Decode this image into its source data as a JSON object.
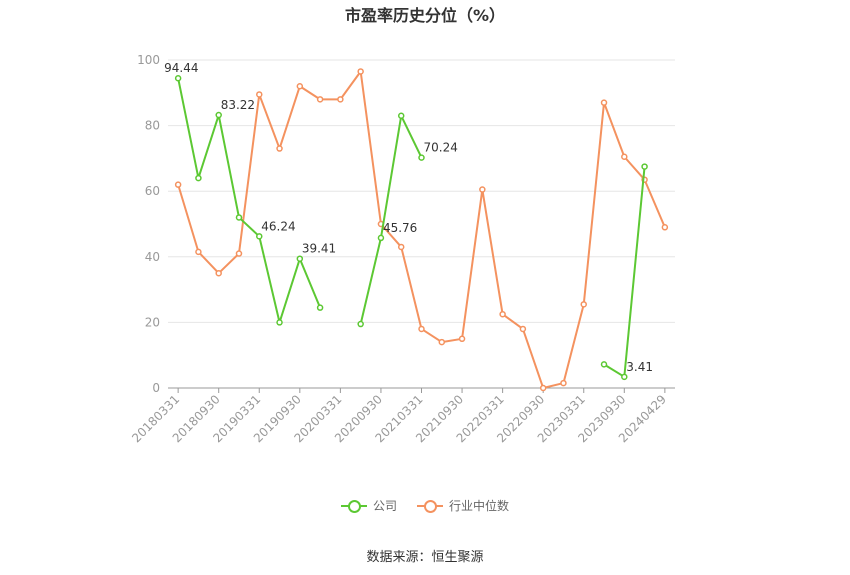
{
  "chart_data": {
    "type": "line",
    "title": "市盈率历史分位（%）",
    "source": "数据来源：恒生聚源",
    "ylim": [
      0,
      100
    ],
    "yticks": [
      "0",
      "20",
      "40",
      "60",
      "80",
      "100"
    ],
    "xtick_labels": [
      "20180331",
      "20180930",
      "20190331",
      "20190930",
      "20200331",
      "20200930",
      "20210331",
      "20210930",
      "20220331",
      "20220930",
      "20230331",
      "20230930",
      "20240429"
    ],
    "xtick_index": [
      0,
      2,
      4,
      6,
      8,
      10,
      12,
      14,
      16,
      18,
      20,
      22,
      24
    ],
    "grid": true,
    "legend_position": "bottom",
    "n_points": 25,
    "series": [
      {
        "name": "公司",
        "color": "#5cc833",
        "values": [
          94.44,
          64,
          83.22,
          52,
          46.24,
          20,
          39.41,
          24.5,
          null,
          19.5,
          45.76,
          83,
          70.24,
          null,
          null,
          null,
          null,
          null,
          null,
          null,
          null,
          7.2,
          3.41,
          67.5,
          null
        ],
        "labels": {
          "0": "94.44",
          "2": "83.22",
          "4": "46.24",
          "6": "39.41",
          "10": "45.76",
          "12": "70.24",
          "22": "3.41"
        }
      },
      {
        "name": "行业中位数",
        "color": "#f4925f",
        "values": [
          62,
          41.5,
          35,
          41,
          89.5,
          73,
          92,
          88,
          88,
          96.5,
          50,
          43,
          18,
          14,
          15,
          60.5,
          22.5,
          18,
          0,
          1.5,
          25.5,
          87,
          70.5,
          63.5,
          49
        ],
        "labels": {}
      }
    ]
  }
}
